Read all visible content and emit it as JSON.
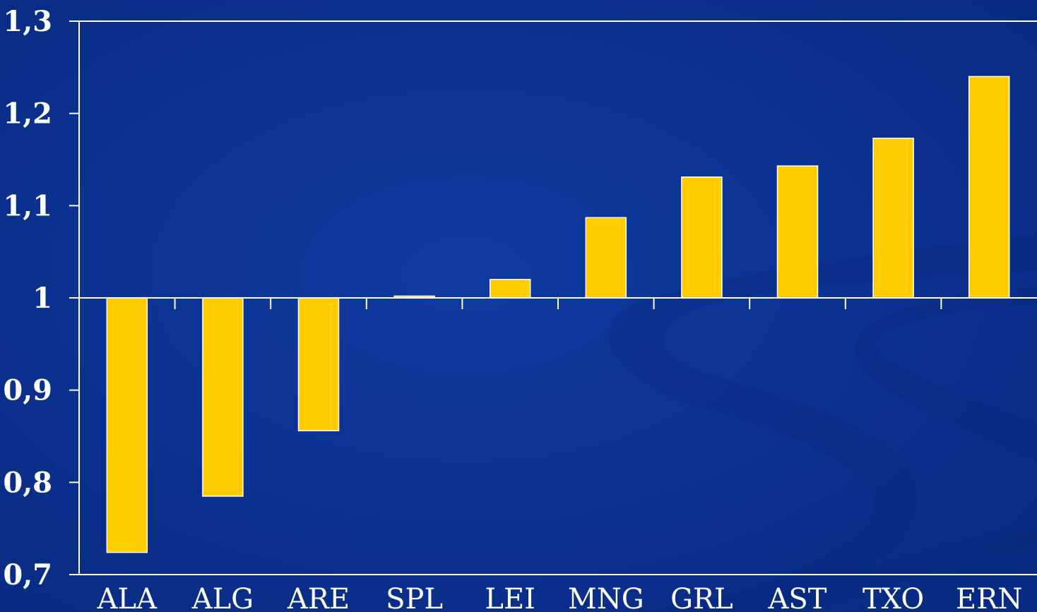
{
  "chart_data": {
    "type": "bar",
    "baseline": 1,
    "ylim": [
      0.7,
      1.3
    ],
    "yticks": [
      "1,3",
      "1,2",
      "1,1",
      "1",
      "0,9",
      "0,8",
      "0,7"
    ],
    "ytick_values": [
      1.3,
      1.2,
      1.1,
      1.0,
      0.9,
      0.8,
      0.7
    ],
    "categories": [
      "ALA",
      "ALG",
      "ARE",
      "SPL",
      "LEI",
      "MNG",
      "GRL",
      "AST",
      "TXO",
      "ERN"
    ],
    "values": [
      0.724,
      0.785,
      0.856,
      1.002,
      1.02,
      1.087,
      1.131,
      1.143,
      1.173,
      1.24
    ],
    "grid": false,
    "colors": {
      "bar": "#ffcc00",
      "bar_edge": "#ffffff",
      "axis": "#ffffff",
      "background": "#0a2f8c"
    }
  }
}
